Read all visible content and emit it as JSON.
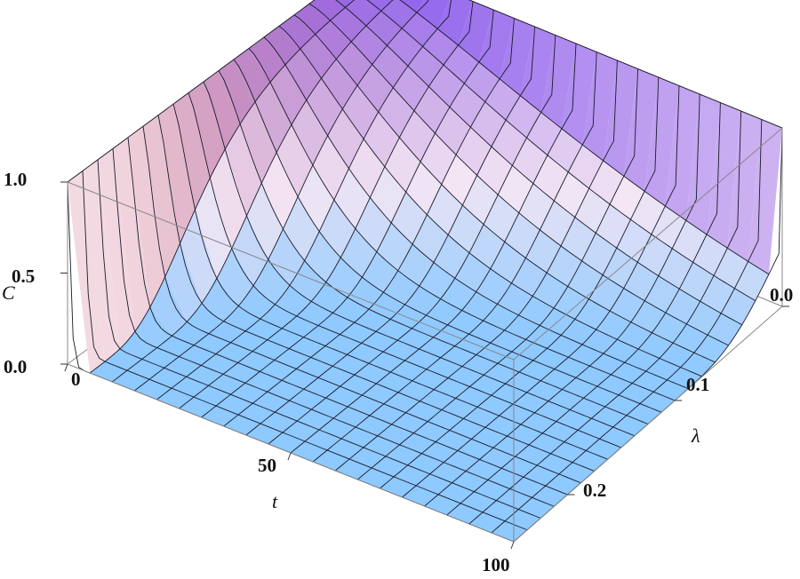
{
  "chart_data": {
    "type": "surface",
    "title": "",
    "xlabel": "t",
    "ylabel": "λ",
    "zlabel": "C",
    "xlim": [
      0,
      100
    ],
    "ylim": [
      0,
      0.25
    ],
    "zlim": [
      0,
      1
    ],
    "x_ticks": [
      "0",
      "50",
      "100"
    ],
    "y_ticks": [
      "0.0",
      "0.1",
      "0.2"
    ],
    "z_ticks": [
      "0.0",
      "0.5",
      "1.0"
    ],
    "mesh": {
      "t": [
        0,
        5,
        10,
        15,
        20,
        25,
        30,
        35,
        40,
        45,
        50,
        55,
        60,
        65,
        70,
        75,
        80,
        85,
        90,
        95,
        100
      ],
      "lambda": [
        0,
        0.0125,
        0.025,
        0.0375,
        0.05,
        0.0625,
        0.075,
        0.0875,
        0.1,
        0.1125,
        0.125,
        0.1375,
        0.15,
        0.1625,
        0.175,
        0.1875,
        0.2,
        0.2125,
        0.225,
        0.2375,
        0.25
      ],
      "C_at_lambda_0": [
        1.0,
        1.0,
        1.0,
        1.0,
        1.0,
        1.0,
        1.0,
        1.0,
        1.0,
        1.0,
        1.0,
        1.0,
        1.0,
        1.0,
        1.0,
        1.0,
        1.0,
        1.0,
        1.0,
        1.0,
        1.0
      ],
      "C_at_t_0": [
        1.0,
        1.0,
        1.0,
        1.0,
        1.0,
        1.0,
        1.0,
        1.0,
        1.0,
        1.0,
        1.0,
        1.0,
        1.0,
        1.0,
        1.0,
        1.0,
        1.0,
        1.0,
        1.0,
        1.0,
        1.0
      ],
      "C_at_t_100_lambda_0_1": 0.15,
      "C_at_t_100_lambda_0_2": 0.02
    },
    "grid": false,
    "box": true,
    "colors": {
      "low": "#8ec9ff",
      "mid": "#f4e6f4",
      "high_left": "#f4a07e",
      "high_right": "#8a5cf0",
      "mesh_line": "#1a1a2a",
      "box_line": "#888888"
    }
  }
}
